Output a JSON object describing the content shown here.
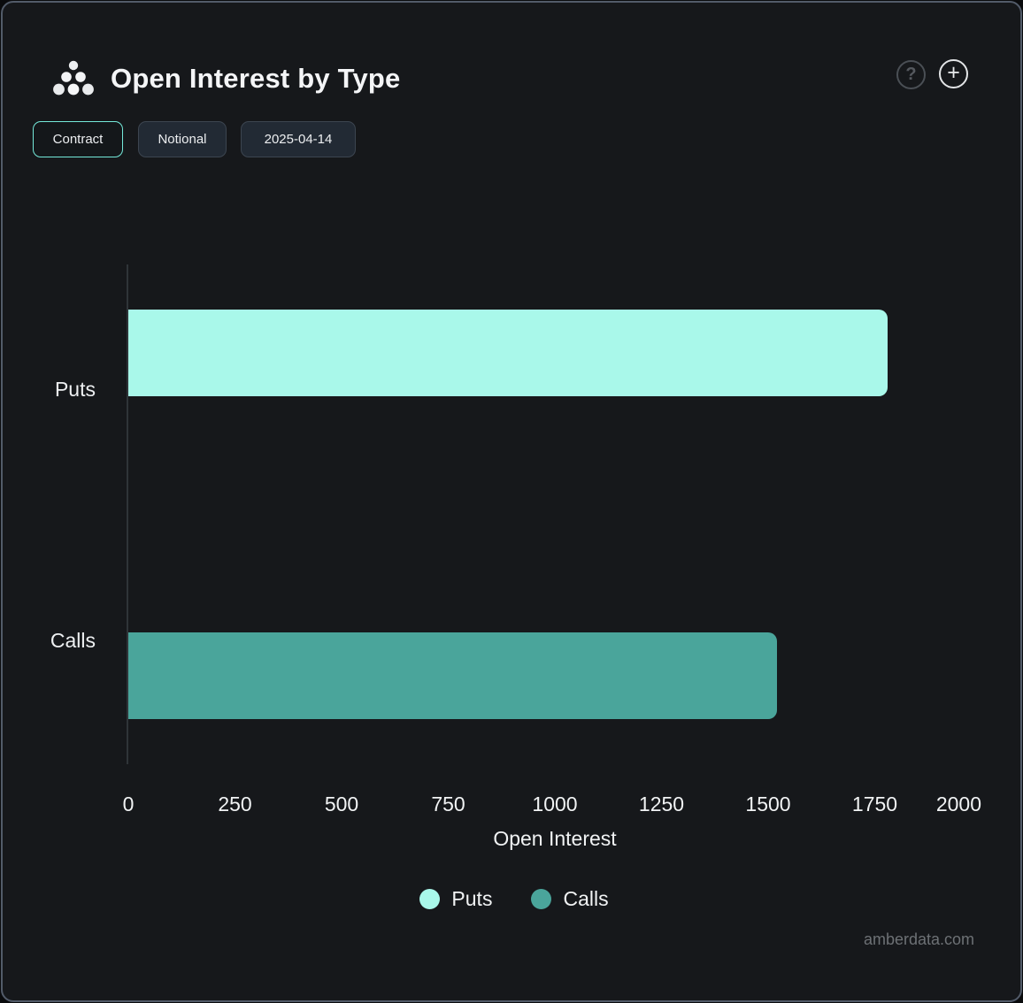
{
  "header": {
    "title": "Open Interest by Type",
    "help_label": "?",
    "add_label": "+",
    "icons": {
      "logo": "amberdata-logo",
      "help": "question-mark-circle-icon",
      "add": "plus-circle-icon"
    }
  },
  "toolbar": {
    "buttons": [
      {
        "label": "Contract",
        "active": true
      },
      {
        "label": "Notional",
        "active": false
      },
      {
        "label": "2025-04-14",
        "active": false
      }
    ]
  },
  "chart_data": {
    "type": "bar",
    "orientation": "horizontal",
    "title": "Open Interest by Type",
    "categories": [
      "Puts",
      "Calls"
    ],
    "values": [
      1780,
      1520
    ],
    "series": [
      {
        "name": "Puts",
        "value": 1780,
        "color": "#a9f8ea"
      },
      {
        "name": "Calls",
        "value": 1520,
        "color": "#4aa59b"
      }
    ],
    "xlabel": "Open Interest",
    "ylabel": "",
    "xticks": [
      0,
      250,
      500,
      750,
      1000,
      1250,
      1500,
      1750,
      2000
    ],
    "xlim": [
      0,
      2000
    ],
    "grid": false,
    "legend": [
      "Puts",
      "Calls"
    ],
    "legend_position": "bottom"
  },
  "footer": {
    "watermark": "amberdata.com"
  },
  "colors": {
    "puts": "#a9f8ea",
    "calls": "#4aa59b",
    "accent": "#74e9da",
    "panel_background": "#16181b",
    "panel_border": "#525b69",
    "text": "#f1f3f4"
  }
}
